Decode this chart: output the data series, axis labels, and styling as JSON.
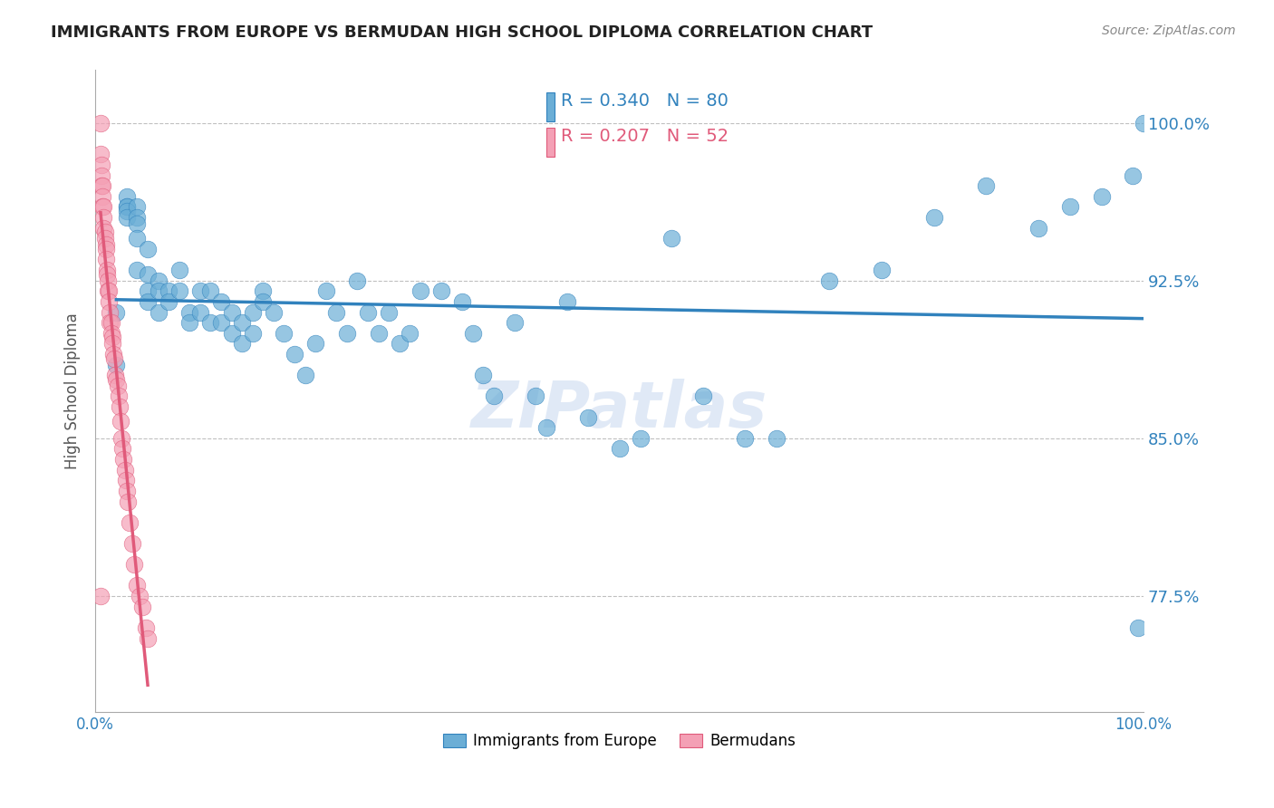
{
  "title": "IMMIGRANTS FROM EUROPE VS BERMUDAN HIGH SCHOOL DIPLOMA CORRELATION CHART",
  "source": "Source: ZipAtlas.com",
  "ylabel": "High School Diploma",
  "yticks": [
    0.775,
    0.85,
    0.925,
    1.0
  ],
  "ytick_labels": [
    "77.5%",
    "85.0%",
    "92.5%",
    "100.0%"
  ],
  "xlim": [
    0.0,
    1.0
  ],
  "ylim": [
    0.72,
    1.025
  ],
  "blue_R": 0.34,
  "blue_N": 80,
  "pink_R": 0.207,
  "pink_N": 52,
  "legend_label_blue": "Immigrants from Europe",
  "legend_label_pink": "Bermudans",
  "blue_color": "#6baed6",
  "pink_color": "#f4a0b5",
  "blue_line_color": "#3182bd",
  "pink_line_color": "#e05a7a",
  "blue_x": [
    0.02,
    0.02,
    0.03,
    0.03,
    0.03,
    0.03,
    0.03,
    0.04,
    0.04,
    0.04,
    0.04,
    0.04,
    0.05,
    0.05,
    0.05,
    0.05,
    0.06,
    0.06,
    0.06,
    0.07,
    0.07,
    0.08,
    0.08,
    0.09,
    0.09,
    0.1,
    0.1,
    0.11,
    0.11,
    0.12,
    0.12,
    0.13,
    0.13,
    0.14,
    0.14,
    0.15,
    0.15,
    0.16,
    0.16,
    0.17,
    0.18,
    0.19,
    0.2,
    0.21,
    0.22,
    0.23,
    0.24,
    0.25,
    0.26,
    0.27,
    0.28,
    0.29,
    0.3,
    0.31,
    0.33,
    0.35,
    0.36,
    0.37,
    0.38,
    0.4,
    0.42,
    0.43,
    0.45,
    0.47,
    0.5,
    0.52,
    0.55,
    0.58,
    0.62,
    0.65,
    0.7,
    0.75,
    0.8,
    0.85,
    0.9,
    0.93,
    0.96,
    0.99,
    0.995,
    1.0
  ],
  "blue_y": [
    0.885,
    0.91,
    0.965,
    0.96,
    0.96,
    0.958,
    0.955,
    0.96,
    0.955,
    0.952,
    0.945,
    0.93,
    0.94,
    0.928,
    0.92,
    0.915,
    0.925,
    0.92,
    0.91,
    0.92,
    0.915,
    0.93,
    0.92,
    0.91,
    0.905,
    0.92,
    0.91,
    0.92,
    0.905,
    0.915,
    0.905,
    0.91,
    0.9,
    0.905,
    0.895,
    0.91,
    0.9,
    0.92,
    0.915,
    0.91,
    0.9,
    0.89,
    0.88,
    0.895,
    0.92,
    0.91,
    0.9,
    0.925,
    0.91,
    0.9,
    0.91,
    0.895,
    0.9,
    0.92,
    0.92,
    0.915,
    0.9,
    0.88,
    0.87,
    0.905,
    0.87,
    0.855,
    0.915,
    0.86,
    0.845,
    0.85,
    0.945,
    0.87,
    0.85,
    0.85,
    0.925,
    0.93,
    0.955,
    0.97,
    0.95,
    0.96,
    0.965,
    0.975,
    0.76,
    1.0
  ],
  "pink_x": [
    0.005,
    0.005,
    0.006,
    0.006,
    0.006,
    0.007,
    0.007,
    0.007,
    0.008,
    0.008,
    0.008,
    0.009,
    0.009,
    0.01,
    0.01,
    0.01,
    0.011,
    0.011,
    0.012,
    0.012,
    0.013,
    0.013,
    0.014,
    0.014,
    0.015,
    0.015,
    0.016,
    0.016,
    0.017,
    0.018,
    0.019,
    0.02,
    0.021,
    0.022,
    0.023,
    0.024,
    0.025,
    0.026,
    0.027,
    0.028,
    0.029,
    0.03,
    0.031,
    0.033,
    0.035,
    0.037,
    0.04,
    0.042,
    0.045,
    0.048,
    0.05,
    0.005
  ],
  "pink_y": [
    1.0,
    0.985,
    0.98,
    0.975,
    0.97,
    0.97,
    0.965,
    0.96,
    0.96,
    0.955,
    0.95,
    0.948,
    0.945,
    0.942,
    0.94,
    0.935,
    0.93,
    0.928,
    0.925,
    0.92,
    0.92,
    0.915,
    0.91,
    0.905,
    0.905,
    0.9,
    0.898,
    0.895,
    0.89,
    0.888,
    0.88,
    0.878,
    0.875,
    0.87,
    0.865,
    0.858,
    0.85,
    0.845,
    0.84,
    0.835,
    0.83,
    0.825,
    0.82,
    0.81,
    0.8,
    0.79,
    0.78,
    0.775,
    0.77,
    0.76,
    0.755,
    0.775
  ]
}
